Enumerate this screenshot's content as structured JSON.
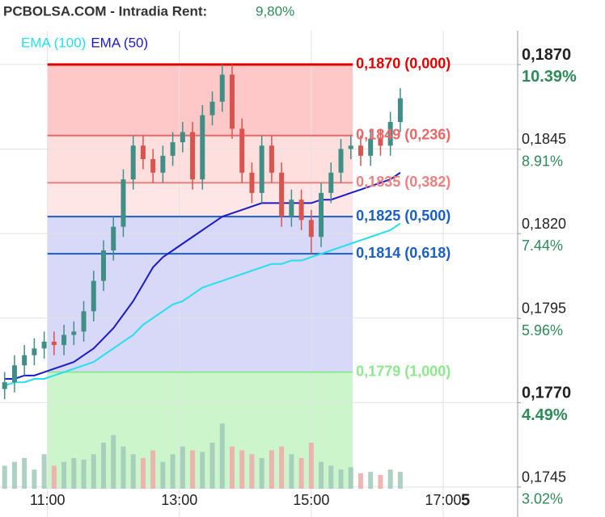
{
  "chart_data": {
    "type": "candlestick",
    "title": "PCBOLSA.COM - Intradia  Rent:",
    "subtitle": "9,80%",
    "corner_label": "5",
    "x": [
      10.35,
      10.5,
      10.65,
      10.8,
      10.95,
      11.1,
      11.25,
      11.4,
      11.55,
      11.7,
      11.85,
      12.0,
      12.15,
      12.3,
      12.45,
      12.6,
      12.75,
      12.9,
      13.05,
      13.2,
      13.35,
      13.5,
      13.65,
      13.8,
      13.95,
      14.1,
      14.25,
      14.4,
      14.55,
      14.7,
      14.85,
      15.0,
      15.15,
      15.3,
      15.45,
      15.6,
      15.75,
      15.9,
      16.05,
      16.2,
      16.35
    ],
    "open": [
      0.1774,
      0.1776,
      0.1781,
      0.1784,
      0.1786,
      0.1788,
      0.1787,
      0.179,
      0.1791,
      0.1797,
      0.1806,
      0.1815,
      0.1822,
      0.1836,
      0.1846,
      0.1842,
      0.1838,
      0.1843,
      0.1847,
      0.185,
      0.1836,
      0.1855,
      0.1859,
      0.1867,
      0.1851,
      0.1838,
      0.1832,
      0.1846,
      0.1838,
      0.1825,
      0.183,
      0.1824,
      0.1819,
      0.1832,
      0.1838,
      0.1845,
      0.1846,
      0.1843,
      0.1848,
      0.1846,
      0.1853
    ],
    "high": [
      0.1779,
      0.1784,
      0.1787,
      0.1789,
      0.1791,
      0.1791,
      0.1793,
      0.1794,
      0.18,
      0.1809,
      0.1818,
      0.1825,
      0.1839,
      0.1849,
      0.1849,
      0.1845,
      0.1846,
      0.185,
      0.1853,
      0.1853,
      0.1858,
      0.1862,
      0.187,
      0.187,
      0.1854,
      0.1841,
      0.1849,
      0.1849,
      0.1841,
      0.1833,
      0.1833,
      0.1827,
      0.1835,
      0.1841,
      0.1848,
      0.1849,
      0.1849,
      0.1851,
      0.1851,
      0.1856,
      0.1863
    ],
    "low": [
      0.1771,
      0.1773,
      0.1778,
      0.1781,
      0.1783,
      0.1784,
      0.1784,
      0.1787,
      0.1788,
      0.1794,
      0.1803,
      0.1812,
      0.1819,
      0.1833,
      0.1839,
      0.1835,
      0.1835,
      0.184,
      0.1844,
      0.1833,
      0.1833,
      0.1852,
      0.1856,
      0.1848,
      0.1835,
      0.1829,
      0.1829,
      0.1835,
      0.1822,
      0.1822,
      0.1821,
      0.1814,
      0.1816,
      0.1829,
      0.1835,
      0.1842,
      0.184,
      0.184,
      0.1843,
      0.1843,
      0.185
    ],
    "close": [
      0.1776,
      0.1781,
      0.1784,
      0.1786,
      0.1788,
      0.1787,
      0.179,
      0.1791,
      0.1797,
      0.1806,
      0.1815,
      0.1822,
      0.1836,
      0.1846,
      0.1842,
      0.1838,
      0.1843,
      0.1847,
      0.185,
      0.1836,
      0.1855,
      0.1859,
      0.1867,
      0.1851,
      0.1838,
      0.1832,
      0.1846,
      0.1838,
      0.1825,
      0.183,
      0.1824,
      0.1819,
      0.1832,
      0.1838,
      0.1845,
      0.1846,
      0.1843,
      0.1848,
      0.1846,
      0.1853,
      0.186
    ],
    "up_color": "#3f8f86",
    "down_color": "#d9534f",
    "volume": [
      30,
      35,
      40,
      25,
      45,
      30,
      35,
      40,
      38,
      45,
      60,
      70,
      55,
      45,
      40,
      50,
      35,
      45,
      55,
      50,
      48,
      60,
      85,
      55,
      50,
      45,
      40,
      50,
      55,
      45,
      40,
      60,
      35,
      30,
      25,
      28,
      20,
      22,
      18,
      25,
      22
    ],
    "vlim": [
      0,
      100
    ],
    "series": [
      {
        "name": "EMA (100)",
        "color": "#22e0f0",
        "values": [
          0.1775,
          0.1776,
          0.1776,
          0.1777,
          0.1777,
          0.1778,
          0.1779,
          0.178,
          0.1781,
          0.1782,
          0.1784,
          0.1786,
          0.1788,
          0.179,
          0.1793,
          0.1795,
          0.1797,
          0.1799,
          0.18,
          0.1802,
          0.1804,
          0.1805,
          0.1806,
          0.1807,
          0.1808,
          0.1809,
          0.181,
          0.1811,
          0.1811,
          0.1812,
          0.1812,
          0.1813,
          0.1814,
          0.1815,
          0.1816,
          0.1817,
          0.1818,
          0.1819,
          0.182,
          0.1821,
          0.1823
        ]
      },
      {
        "name": "EMA (50)",
        "color": "#1a1acc",
        "values": [
          0.1777,
          0.1777,
          0.1778,
          0.1778,
          0.1779,
          0.178,
          0.1781,
          0.1782,
          0.1784,
          0.1786,
          0.1789,
          0.1792,
          0.1796,
          0.18,
          0.1805,
          0.181,
          0.1813,
          0.1815,
          0.1817,
          0.1819,
          0.1821,
          0.1823,
          0.1825,
          0.1826,
          0.1827,
          0.1828,
          0.1829,
          0.1829,
          0.1829,
          0.1829,
          0.1829,
          0.1829,
          0.183,
          0.183,
          0.1831,
          0.1832,
          0.1833,
          0.1834,
          0.1835,
          0.1836,
          0.1838
        ]
      }
    ],
    "fib_start": 11.0,
    "fib_end": 15.63,
    "fib_levels": [
      {
        "value": 0.187,
        "label": "0,1870 (0,000)",
        "color": "#e00000"
      },
      {
        "value": 0.1849,
        "label": "0,1849 (0,236)",
        "color": "#ee6666"
      },
      {
        "value": 0.1835,
        "label": "0,1835 (0,382)",
        "color": "#f08080"
      },
      {
        "value": 0.1825,
        "label": "0,1825 (0,500)",
        "color": "#1a5fc8"
      },
      {
        "value": 0.1814,
        "label": "0,1814 (0,618)",
        "color": "#1a5fc8"
      },
      {
        "value": 0.1779,
        "label": "0,1779 (1,000)",
        "color": "#8ee88e"
      }
    ],
    "xlim": [
      10.28,
      18.13
    ],
    "xticks": [
      {
        "value": 11,
        "label": "11:00"
      },
      {
        "value": 13,
        "label": "13:00"
      },
      {
        "value": 15,
        "label": "15:00"
      },
      {
        "value": 17,
        "label": "17:00"
      }
    ],
    "ylim": [
      0.17445,
      0.188
    ],
    "yticks": [
      {
        "value": 0.187,
        "label": "0,1870"
      },
      {
        "value": 0.1845,
        "label": "0,1845"
      },
      {
        "value": 0.182,
        "label": "0,1820"
      },
      {
        "value": 0.1795,
        "label": "0,1795"
      },
      {
        "value": 0.177,
        "label": "0,1770"
      },
      {
        "value": 0.1745,
        "label": "0,1745"
      }
    ],
    "y2lim": [
      2.99,
      10.98
    ],
    "y2ticks": [
      {
        "value": 10.39,
        "label": "10.39%"
      },
      {
        "value": 8.91,
        "label": "8.91%"
      },
      {
        "value": 7.44,
        "label": "7.44%"
      },
      {
        "value": 5.96,
        "label": "5.96%"
      },
      {
        "value": 4.49,
        "label": "4.49%"
      },
      {
        "value": 3.02,
        "label": "3.02%"
      }
    ],
    "grid": true
  }
}
